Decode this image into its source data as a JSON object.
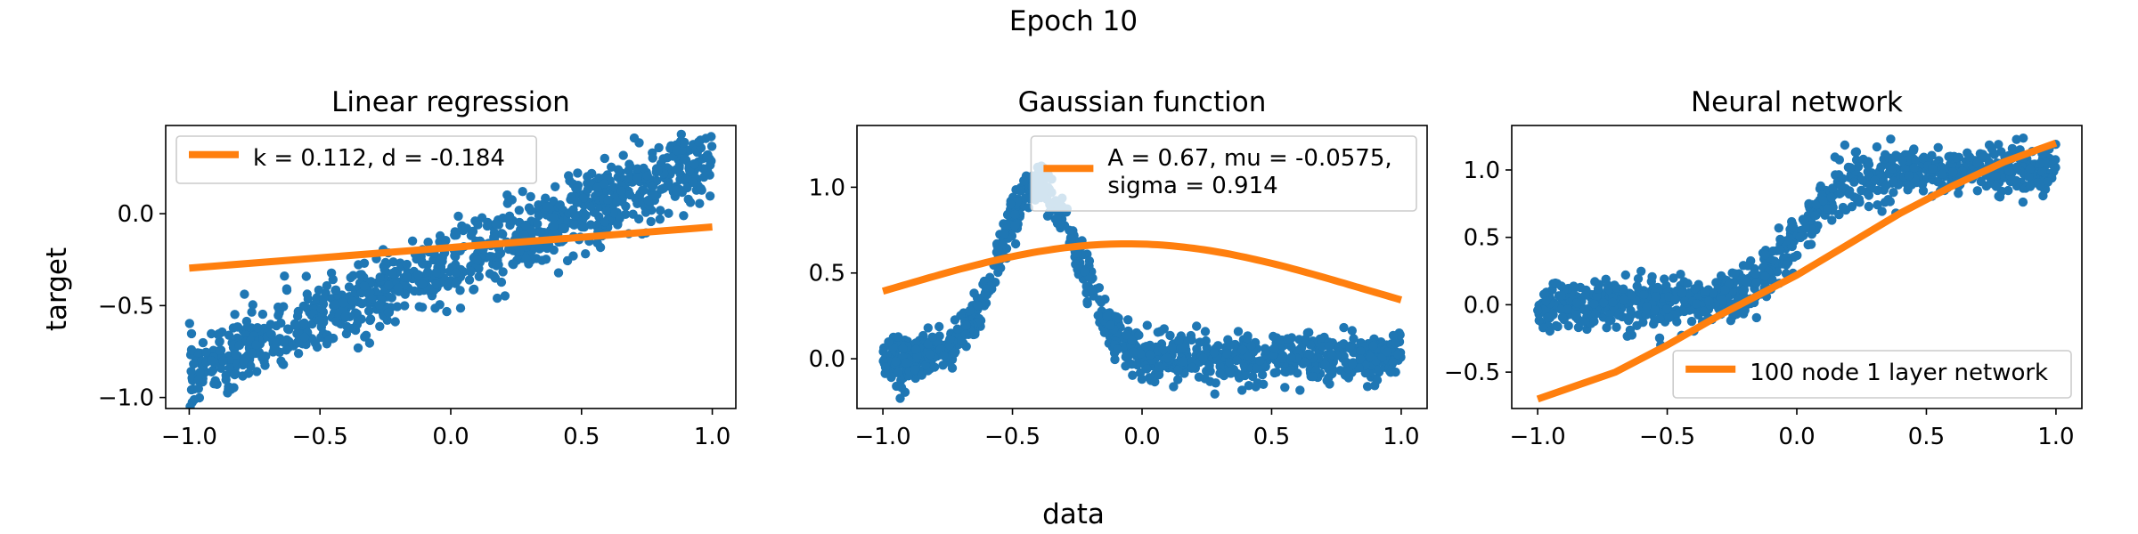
{
  "figure": {
    "suptitle": "Epoch 10",
    "xlabel": "data",
    "ylabel": "target"
  },
  "colors": {
    "scatter": "#1f77b4",
    "fit": "#ff7f0e"
  },
  "chart_data": [
    {
      "type": "scatter",
      "title": "Linear regression",
      "xlim": [
        -1.09,
        1.09
      ],
      "ylim": [
        -1.06,
        0.48
      ],
      "xticks": [
        -1.0,
        -0.5,
        0.0,
        0.5,
        1.0
      ],
      "xtick_labels": [
        "−1.0",
        "−0.5",
        "0.0",
        "0.5",
        "1.0"
      ],
      "yticks": [
        -1.0,
        -0.5,
        0.0
      ],
      "ytick_labels": [
        "−1.0",
        "−0.5",
        "0.0"
      ],
      "legend": {
        "placement": "upper-left",
        "entries": [
          "k = 0.112, d = -0.184"
        ]
      },
      "model": {
        "kind": "linear",
        "k": 0.112,
        "d": -0.184
      },
      "data_trend": {
        "kind": "linear",
        "slope": 0.59,
        "intercept": -0.28,
        "noise": 0.1,
        "points": 1000
      },
      "series": [
        {
          "name": "data",
          "style": "scatter"
        },
        {
          "name": "k = 0.112, d = -0.184",
          "style": "line",
          "x": [
            -1.0,
            1.0
          ],
          "y": [
            -0.296,
            -0.072
          ]
        }
      ]
    },
    {
      "type": "scatter",
      "title": "Gaussian function",
      "xlim": [
        -1.1,
        1.1
      ],
      "ylim": [
        -0.29,
        1.36
      ],
      "xticks": [
        -1.0,
        -0.5,
        0.0,
        0.5,
        1.0
      ],
      "xtick_labels": [
        "−1.0",
        "−0.5",
        "0.0",
        "0.5",
        "1.0"
      ],
      "yticks": [
        0.0,
        0.5,
        1.0
      ],
      "ytick_labels": [
        "0.0",
        "0.5",
        "1.0"
      ],
      "legend": {
        "placement": "upper-right",
        "entries": [
          "A = 0.67, mu = -0.0575,\nsigma = 0.914"
        ]
      },
      "model": {
        "kind": "gaussian",
        "A": 0.67,
        "mu": -0.0575,
        "sigma": 0.914
      },
      "data_trend": {
        "kind": "gaussian",
        "A": 1.0,
        "mu": -0.4,
        "sigma": 0.15,
        "noise": 0.07,
        "points": 1000
      },
      "series": [
        {
          "name": "data",
          "style": "scatter"
        },
        {
          "name": "A = 0.67, mu = -0.0575, sigma = 0.914",
          "style": "line"
        }
      ]
    },
    {
      "type": "scatter",
      "title": "Neural network",
      "xlim": [
        -1.1,
        1.1
      ],
      "ylim": [
        -0.77,
        1.33
      ],
      "xticks": [
        -1.0,
        -0.5,
        0.0,
        0.5,
        1.0
      ],
      "xtick_labels": [
        "−1.0",
        "−0.5",
        "0.0",
        "0.5",
        "1.0"
      ],
      "yticks": [
        -0.5,
        0.0,
        0.5,
        1.0
      ],
      "ytick_labels": [
        "−0.5",
        "0.0",
        "0.5",
        "1.0"
      ],
      "legend": {
        "placement": "lower-right",
        "entries": [
          "100 node 1 layer network"
        ]
      },
      "data_trend": {
        "kind": "sigmoid",
        "low": 0.0,
        "high": 1.0,
        "center": 0.0,
        "width": 0.1,
        "noise": 0.09,
        "points": 1000
      },
      "series": [
        {
          "name": "data",
          "style": "scatter"
        },
        {
          "name": "100 node 1 layer network",
          "style": "line",
          "x": [
            -1.0,
            -0.7,
            -0.5,
            -0.3,
            -0.1,
            0.0,
            0.2,
            0.4,
            0.6,
            0.8,
            1.0
          ],
          "y": [
            -0.7,
            -0.5,
            -0.3,
            -0.08,
            0.12,
            0.22,
            0.45,
            0.68,
            0.88,
            1.06,
            1.2
          ]
        }
      ]
    }
  ]
}
